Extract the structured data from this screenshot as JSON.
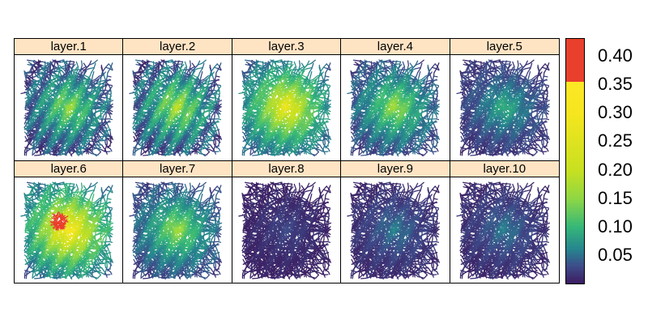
{
  "panels": [
    {
      "label": "layer.1",
      "level": 0.16,
      "spread": 0.55,
      "hotspot": 0
    },
    {
      "label": "layer.2",
      "level": 0.18,
      "spread": 0.65,
      "hotspot": 0
    },
    {
      "label": "layer.3",
      "level": 0.28,
      "spread": 0.35,
      "hotspot": 0
    },
    {
      "label": "layer.4",
      "level": 0.17,
      "spread": 0.35,
      "hotspot": 0
    },
    {
      "label": "layer.5",
      "level": 0.1,
      "spread": 0.2,
      "hotspot": 0
    },
    {
      "label": "layer.6",
      "level": 0.33,
      "spread": 0.45,
      "hotspot": 1
    },
    {
      "label": "layer.7",
      "level": 0.17,
      "spread": 0.3,
      "hotspot": 0
    },
    {
      "label": "layer.8",
      "level": 0.03,
      "spread": 0.1,
      "hotspot": 0
    },
    {
      "label": "layer.9",
      "level": 0.06,
      "spread": 0.15,
      "hotspot": 0
    },
    {
      "label": "layer.10",
      "level": 0.06,
      "spread": 0.15,
      "hotspot": 0
    }
  ],
  "colorbar": {
    "min": 0.0,
    "max": 0.43,
    "ticks": [
      "0.05",
      "0.10",
      "0.15",
      "0.20",
      "0.25",
      "0.30",
      "0.35",
      "0.40"
    ],
    "stops": [
      {
        "value": 0.0,
        "color": "#3b1a5e"
      },
      {
        "value": 0.03,
        "color": "#3e4a89"
      },
      {
        "value": 0.06,
        "color": "#26838f"
      },
      {
        "value": 0.1,
        "color": "#35b779"
      },
      {
        "value": 0.15,
        "color": "#8fd744"
      },
      {
        "value": 0.2,
        "color": "#c8e020"
      },
      {
        "value": 0.3,
        "color": "#f5e61f"
      },
      {
        "value": 0.355,
        "color": "#fde725"
      }
    ],
    "top_band": {
      "from": 0.355,
      "color": "#e8402c"
    }
  }
}
